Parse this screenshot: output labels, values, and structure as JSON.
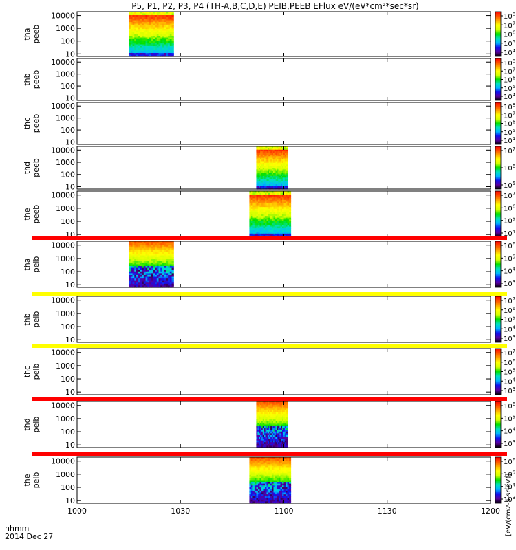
{
  "chart_data": {
    "type": "heatmap",
    "title": "P5, P1, P2, P3, P4 (TH-A,B,C,D,E) PEIB,PEEB EFlux eV/(eV*cm²*sec*sr)",
    "x_axis": {
      "label_line1": "hhmm",
      "label_line2": "2014 Dec 27",
      "tick_labels": [
        "1000",
        "1030",
        "1100",
        "1130",
        "1200"
      ],
      "tick_values_min": [
        0,
        30,
        60,
        90,
        120
      ],
      "range_min": [
        0,
        120
      ]
    },
    "y_tick_labels": [
      "10",
      "100",
      "1000",
      "10000"
    ],
    "y_tick_values": [
      10,
      100,
      1000,
      10000
    ],
    "colorbar_label": "[eV/(cm2-s-sr-eV)]",
    "colormap": "rainbow (black-purple-blue-cyan-green-yellow-orange-red)",
    "colormap_colors": [
      "#000000",
      "#5a00a0",
      "#1010f0",
      "#00b4ff",
      "#00e0c0",
      "#00e000",
      "#d4ff00",
      "#ffff00",
      "#ffaa00",
      "#ff5000",
      "#ff0000"
    ],
    "status_bar_colors": {
      "red": "#ff0000",
      "yellow": "#ffff00"
    },
    "panels": [
      {
        "line1": "tha",
        "line2": "peeb",
        "data_start_min": 15,
        "data_end_min": 28,
        "cb_min_exp": 4,
        "cb_max_exp": 8,
        "cb_ticks": [
          "10^8",
          "10^7",
          "10^6",
          "10^5",
          "10^4"
        ],
        "pattern": "electron"
      },
      {
        "line1": "thb",
        "line2": "peeb",
        "data_start_min": null,
        "data_end_min": null,
        "cb_min_exp": 4,
        "cb_max_exp": 8,
        "cb_ticks": [
          "10^8",
          "10^7",
          "10^6",
          "10^5",
          "10^4"
        ],
        "pattern": "none"
      },
      {
        "line1": "thc",
        "line2": "peeb",
        "data_start_min": null,
        "data_end_min": null,
        "cb_min_exp": 4,
        "cb_max_exp": 8,
        "cb_ticks": [
          "10^8",
          "10^7",
          "10^6",
          "10^5",
          "10^4"
        ],
        "pattern": "none"
      },
      {
        "line1": "thd",
        "line2": "peeb",
        "data_start_min": 52,
        "data_end_min": 61,
        "cb_min_exp": 5,
        "cb_max_exp": 7,
        "cb_ticks": [
          "10^7",
          "10^6",
          "10^5"
        ],
        "pattern": "electron"
      },
      {
        "line1": "the",
        "line2": "peeb",
        "data_start_min": 50,
        "data_end_min": 62,
        "cb_min_exp": 4,
        "cb_max_exp": 7,
        "cb_ticks": [
          "10^7",
          "10^6",
          "10^5",
          "10^4"
        ],
        "pattern": "electron"
      },
      {
        "line1": "tha",
        "line2": "peib",
        "data_start_min": 15,
        "data_end_min": 28,
        "cb_min_exp": 3,
        "cb_max_exp": 6,
        "cb_ticks": [
          "10^6",
          "10^5",
          "10^4",
          "10^3"
        ],
        "pattern": "ion"
      },
      {
        "line1": "thb",
        "line2": "peib",
        "data_start_min": null,
        "data_end_min": null,
        "cb_min_exp": 3,
        "cb_max_exp": 7,
        "cb_ticks": [
          "10^7",
          "10^6",
          "10^5",
          "10^4",
          "10^3"
        ],
        "pattern": "none"
      },
      {
        "line1": "thc",
        "line2": "peib",
        "data_start_min": null,
        "data_end_min": null,
        "cb_min_exp": 3,
        "cb_max_exp": 7,
        "cb_ticks": [
          "10^7",
          "10^6",
          "10^5",
          "10^4",
          "10^3"
        ],
        "pattern": "none"
      },
      {
        "line1": "thd",
        "line2": "peib",
        "data_start_min": 52,
        "data_end_min": 61,
        "cb_min_exp": 3,
        "cb_max_exp": 6,
        "cb_ticks": [
          "10^6",
          "10^5",
          "10^4",
          "10^3"
        ],
        "pattern": "ion"
      },
      {
        "line1": "the",
        "line2": "peib",
        "data_start_min": 50,
        "data_end_min": 62,
        "cb_min_exp": 3,
        "cb_max_exp": 6,
        "cb_ticks": [
          "10^6",
          "10^5",
          "10^4",
          "10^3"
        ],
        "pattern": "ion"
      }
    ],
    "status_bars": [
      {
        "after_panel": 5,
        "color": "red"
      },
      {
        "after_panel": 6,
        "color": "yellow"
      },
      {
        "after_panel": 7,
        "color": "yellow"
      },
      {
        "after_panel": 8,
        "color": "red"
      },
      {
        "after_panel": 9,
        "color": "red"
      }
    ]
  }
}
